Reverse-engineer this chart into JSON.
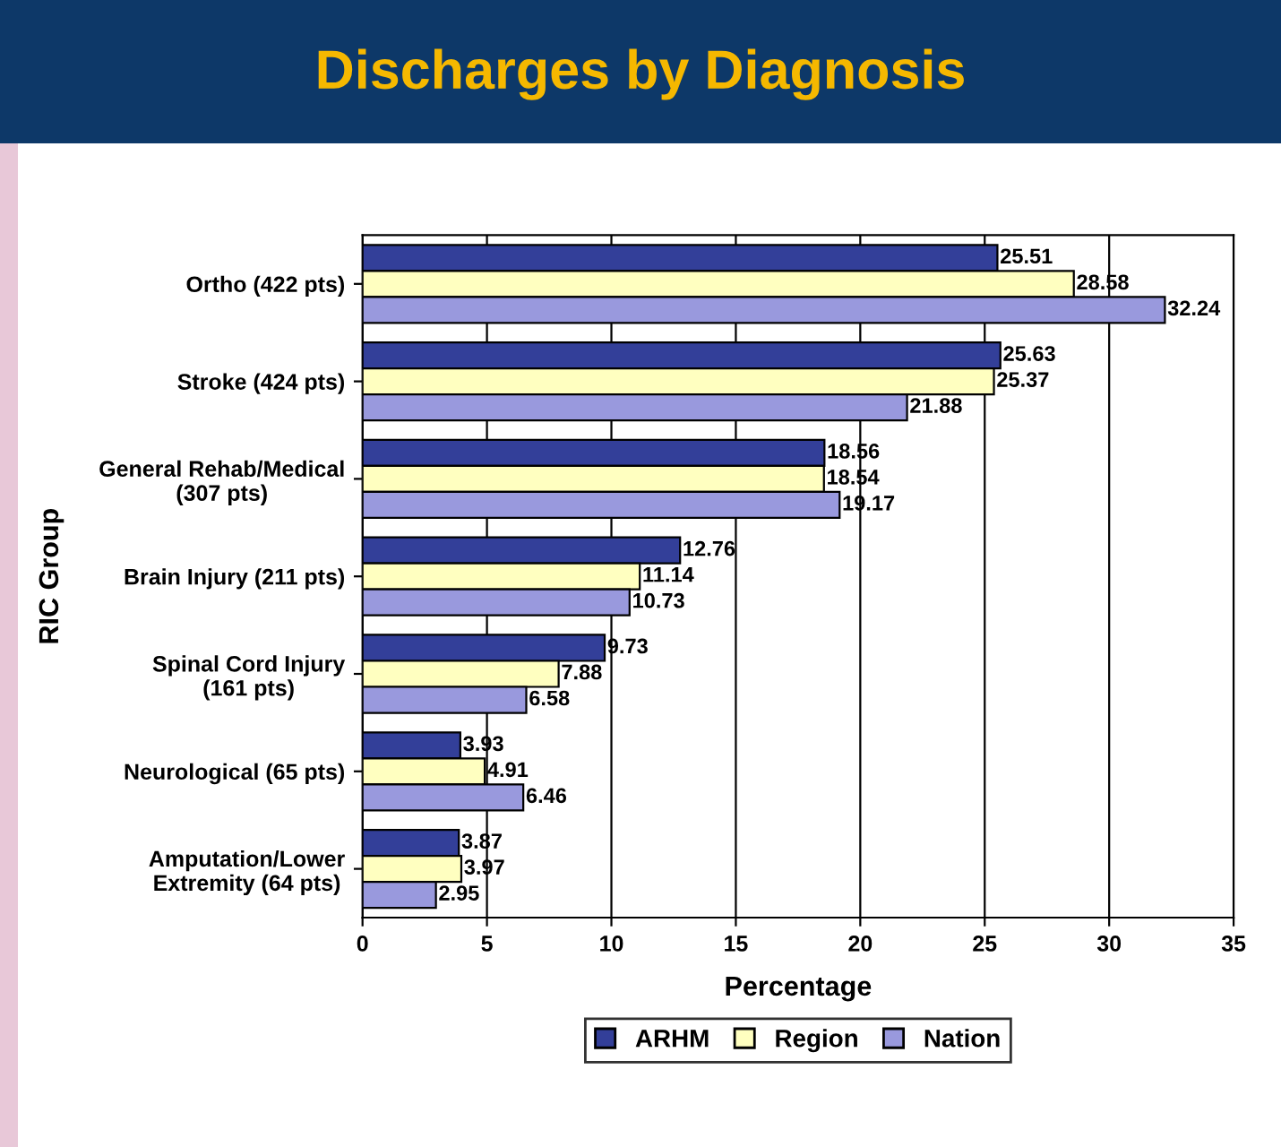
{
  "chart_data": {
    "type": "bar",
    "orientation": "horizontal",
    "title": "Discharges by Diagnosis",
    "xlabel": "Percentage",
    "ylabel": "RIC Group",
    "categories": [
      "Ortho (422 pts)",
      "Stroke (424 pts)",
      "General Rehab/Medical\n(307 pts)",
      "Brain Injury (211 pts)",
      "Spinal Cord Injury\n(161 pts)",
      "Neurological (65 pts)",
      "Amputation/Lower\nExtremity (64 pts)"
    ],
    "series": [
      {
        "name": "ARHM",
        "color": "#333f99",
        "values": [
          25.51,
          25.63,
          18.56,
          12.76,
          9.73,
          3.93,
          3.87
        ]
      },
      {
        "name": "Region",
        "color": "#ffffc0",
        "values": [
          28.58,
          25.37,
          18.54,
          11.14,
          7.88,
          4.91,
          3.97
        ]
      },
      {
        "name": "Nation",
        "color": "#9999dd",
        "values": [
          32.24,
          21.88,
          19.17,
          10.73,
          6.58,
          6.46,
          2.95
        ]
      }
    ],
    "xlim": [
      0,
      35
    ],
    "xticks": [
      0,
      5,
      10,
      15,
      20,
      25,
      30,
      35
    ],
    "grid": "x",
    "legend": "bottom",
    "data_labels": true
  }
}
